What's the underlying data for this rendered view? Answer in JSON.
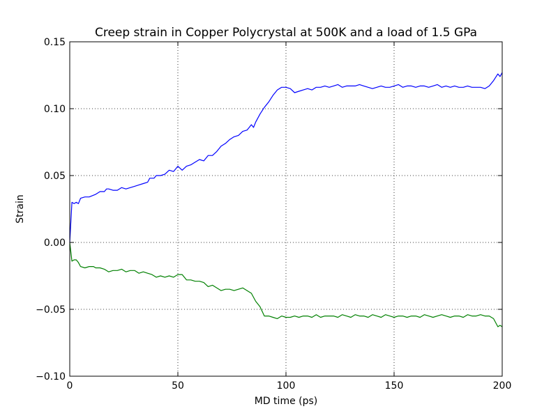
{
  "chart_data": {
    "type": "line",
    "title": "Creep strain in Copper Polycrystal at 500K and a load of 1.5 GPa",
    "xlabel": "MD time (ps)",
    "ylabel": "Strain",
    "xlim": [
      0,
      200
    ],
    "ylim": [
      -0.1,
      0.15
    ],
    "xticks": [
      0,
      50,
      100,
      150,
      200
    ],
    "xtick_labels": [
      "0",
      "50",
      "100",
      "150",
      "200"
    ],
    "yticks": [
      -0.1,
      -0.05,
      0.0,
      0.05,
      0.1,
      0.15
    ],
    "ytick_labels": [
      "−0.10",
      "−0.05",
      "0.00",
      "0.05",
      "0.10",
      "0.15"
    ],
    "grid": true,
    "legend": "none",
    "series": [
      {
        "color": "#0000ff",
        "points": [
          [
            0,
            0.0
          ],
          [
            1,
            0.03
          ],
          [
            2,
            0.029
          ],
          [
            3,
            0.03
          ],
          [
            4,
            0.029
          ],
          [
            5,
            0.033
          ],
          [
            7,
            0.034
          ],
          [
            9,
            0.034
          ],
          [
            12,
            0.036
          ],
          [
            14,
            0.038
          ],
          [
            16,
            0.038
          ],
          [
            17,
            0.04
          ],
          [
            18,
            0.04
          ],
          [
            20,
            0.039
          ],
          [
            22,
            0.039
          ],
          [
            24,
            0.041
          ],
          [
            26,
            0.04
          ],
          [
            28,
            0.041
          ],
          [
            30,
            0.042
          ],
          [
            32,
            0.043
          ],
          [
            34,
            0.044
          ],
          [
            36,
            0.045
          ],
          [
            37,
            0.048
          ],
          [
            39,
            0.048
          ],
          [
            40,
            0.05
          ],
          [
            42,
            0.05
          ],
          [
            44,
            0.051
          ],
          [
            46,
            0.054
          ],
          [
            48,
            0.053
          ],
          [
            50,
            0.057
          ],
          [
            52,
            0.054
          ],
          [
            54,
            0.057
          ],
          [
            56,
            0.058
          ],
          [
            58,
            0.06
          ],
          [
            60,
            0.062
          ],
          [
            62,
            0.061
          ],
          [
            64,
            0.065
          ],
          [
            66,
            0.065
          ],
          [
            68,
            0.068
          ],
          [
            70,
            0.072
          ],
          [
            72,
            0.074
          ],
          [
            74,
            0.077
          ],
          [
            76,
            0.079
          ],
          [
            78,
            0.08
          ],
          [
            80,
            0.083
          ],
          [
            82,
            0.084
          ],
          [
            84,
            0.088
          ],
          [
            85,
            0.086
          ],
          [
            86,
            0.09
          ],
          [
            88,
            0.096
          ],
          [
            90,
            0.101
          ],
          [
            92,
            0.105
          ],
          [
            94,
            0.11
          ],
          [
            96,
            0.114
          ],
          [
            98,
            0.116
          ],
          [
            100,
            0.116
          ],
          [
            102,
            0.115
          ],
          [
            104,
            0.112
          ],
          [
            106,
            0.113
          ],
          [
            108,
            0.114
          ],
          [
            110,
            0.115
          ],
          [
            112,
            0.114
          ],
          [
            114,
            0.116
          ],
          [
            116,
            0.116
          ],
          [
            118,
            0.117
          ],
          [
            120,
            0.116
          ],
          [
            122,
            0.117
          ],
          [
            124,
            0.118
          ],
          [
            126,
            0.116
          ],
          [
            128,
            0.117
          ],
          [
            130,
            0.117
          ],
          [
            132,
            0.117
          ],
          [
            134,
            0.118
          ],
          [
            136,
            0.117
          ],
          [
            138,
            0.116
          ],
          [
            140,
            0.115
          ],
          [
            142,
            0.116
          ],
          [
            144,
            0.117
          ],
          [
            146,
            0.116
          ],
          [
            148,
            0.116
          ],
          [
            150,
            0.117
          ],
          [
            152,
            0.118
          ],
          [
            154,
            0.116
          ],
          [
            156,
            0.117
          ],
          [
            158,
            0.117
          ],
          [
            160,
            0.116
          ],
          [
            162,
            0.117
          ],
          [
            164,
            0.117
          ],
          [
            166,
            0.116
          ],
          [
            168,
            0.117
          ],
          [
            170,
            0.118
          ],
          [
            172,
            0.116
          ],
          [
            174,
            0.117
          ],
          [
            176,
            0.116
          ],
          [
            178,
            0.117
          ],
          [
            180,
            0.116
          ],
          [
            182,
            0.116
          ],
          [
            184,
            0.117
          ],
          [
            186,
            0.116
          ],
          [
            188,
            0.116
          ],
          [
            190,
            0.116
          ],
          [
            192,
            0.115
          ],
          [
            194,
            0.117
          ],
          [
            196,
            0.121
          ],
          [
            198,
            0.126
          ],
          [
            199,
            0.124
          ],
          [
            200,
            0.127
          ]
        ]
      },
      {
        "color": "#008000",
        "points": [
          [
            0,
            0.0
          ],
          [
            1,
            -0.014
          ],
          [
            2,
            -0.013
          ],
          [
            3,
            -0.013
          ],
          [
            4,
            -0.015
          ],
          [
            5,
            -0.018
          ],
          [
            7,
            -0.019
          ],
          [
            9,
            -0.018
          ],
          [
            11,
            -0.018
          ],
          [
            12,
            -0.019
          ],
          [
            14,
            -0.019
          ],
          [
            16,
            -0.02
          ],
          [
            18,
            -0.022
          ],
          [
            20,
            -0.021
          ],
          [
            22,
            -0.021
          ],
          [
            24,
            -0.02
          ],
          [
            26,
            -0.022
          ],
          [
            28,
            -0.021
          ],
          [
            30,
            -0.021
          ],
          [
            32,
            -0.023
          ],
          [
            34,
            -0.022
          ],
          [
            36,
            -0.023
          ],
          [
            38,
            -0.024
          ],
          [
            40,
            -0.026
          ],
          [
            42,
            -0.025
          ],
          [
            44,
            -0.026
          ],
          [
            46,
            -0.025
          ],
          [
            48,
            -0.026
          ],
          [
            50,
            -0.024
          ],
          [
            52,
            -0.024
          ],
          [
            54,
            -0.028
          ],
          [
            56,
            -0.028
          ],
          [
            58,
            -0.029
          ],
          [
            60,
            -0.029
          ],
          [
            62,
            -0.03
          ],
          [
            64,
            -0.033
          ],
          [
            66,
            -0.032
          ],
          [
            68,
            -0.034
          ],
          [
            70,
            -0.036
          ],
          [
            72,
            -0.035
          ],
          [
            74,
            -0.035
          ],
          [
            76,
            -0.036
          ],
          [
            78,
            -0.035
          ],
          [
            80,
            -0.034
          ],
          [
            82,
            -0.036
          ],
          [
            84,
            -0.038
          ],
          [
            86,
            -0.044
          ],
          [
            88,
            -0.048
          ],
          [
            90,
            -0.055
          ],
          [
            92,
            -0.055
          ],
          [
            94,
            -0.056
          ],
          [
            96,
            -0.057
          ],
          [
            98,
            -0.055
          ],
          [
            100,
            -0.056
          ],
          [
            102,
            -0.056
          ],
          [
            104,
            -0.055
          ],
          [
            106,
            -0.056
          ],
          [
            108,
            -0.055
          ],
          [
            110,
            -0.055
          ],
          [
            112,
            -0.056
          ],
          [
            114,
            -0.054
          ],
          [
            116,
            -0.056
          ],
          [
            118,
            -0.055
          ],
          [
            120,
            -0.055
          ],
          [
            122,
            -0.055
          ],
          [
            124,
            -0.056
          ],
          [
            126,
            -0.054
          ],
          [
            128,
            -0.055
          ],
          [
            130,
            -0.056
          ],
          [
            132,
            -0.054
          ],
          [
            134,
            -0.055
          ],
          [
            136,
            -0.055
          ],
          [
            138,
            -0.056
          ],
          [
            140,
            -0.054
          ],
          [
            142,
            -0.055
          ],
          [
            144,
            -0.056
          ],
          [
            146,
            -0.054
          ],
          [
            148,
            -0.055
          ],
          [
            150,
            -0.056
          ],
          [
            152,
            -0.055
          ],
          [
            154,
            -0.055
          ],
          [
            156,
            -0.056
          ],
          [
            158,
            -0.055
          ],
          [
            160,
            -0.055
          ],
          [
            162,
            -0.056
          ],
          [
            164,
            -0.054
          ],
          [
            166,
            -0.055
          ],
          [
            168,
            -0.056
          ],
          [
            170,
            -0.055
          ],
          [
            172,
            -0.054
          ],
          [
            174,
            -0.055
          ],
          [
            176,
            -0.056
          ],
          [
            178,
            -0.055
          ],
          [
            180,
            -0.055
          ],
          [
            182,
            -0.056
          ],
          [
            184,
            -0.054
          ],
          [
            186,
            -0.055
          ],
          [
            188,
            -0.055
          ],
          [
            190,
            -0.054
          ],
          [
            192,
            -0.055
          ],
          [
            194,
            -0.055
          ],
          [
            196,
            -0.057
          ],
          [
            198,
            -0.063
          ],
          [
            199,
            -0.062
          ],
          [
            200,
            -0.063
          ]
        ]
      }
    ]
  }
}
